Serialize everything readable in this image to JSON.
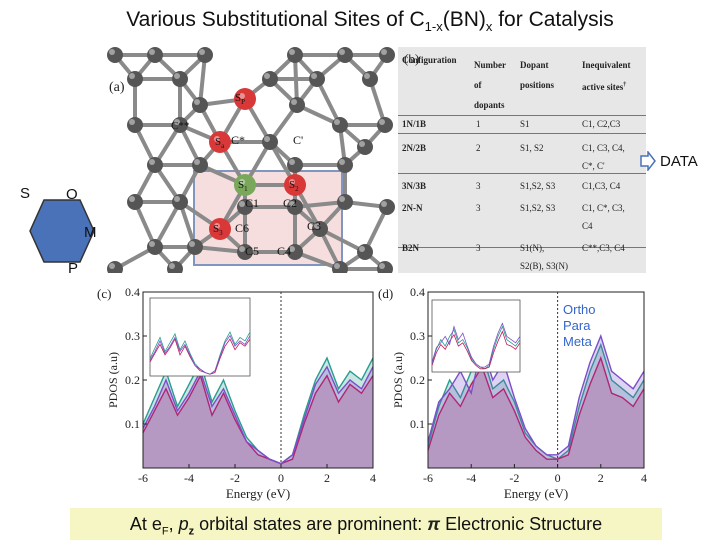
{
  "title": {
    "main": "Various Substitutional Sites of C",
    "sub1": "1-x",
    "mid": "(BN)",
    "sub2": "x",
    "end": " for Catalysis"
  },
  "panels": {
    "a": "(a)",
    "b": "(b)",
    "c": "(c)",
    "d": "(d)"
  },
  "structure_labels": {
    "sp": "S",
    "sp_sub": "P",
    "sa": "S",
    "sa_sub": "a",
    "c_star_star": "C**",
    "c_star": "C*",
    "c_prime": "C'",
    "s1": "S",
    "s1_sub": "1",
    "s2": "S",
    "s2_sub": "2",
    "s3": "S",
    "s3_sub": "3",
    "c1": "C1",
    "c2": "C2",
    "c3": "C3",
    "c4": "C4",
    "c5": "C5",
    "c6": "C6"
  },
  "table": {
    "headers": {
      "col1": "Configuration",
      "col2": [
        "Number",
        "of",
        "dopants"
      ],
      "col3": [
        "Dopant",
        "positions"
      ],
      "col4": [
        "Inequivalent",
        "active sites",
        "†"
      ]
    },
    "rows": [
      {
        "config": "1N/1B",
        "num": "1",
        "pos": "S1",
        "sites": [
          "C1, C2,C3"
        ]
      },
      {
        "config": "2N/2B",
        "num": "2",
        "pos": "S1, S2",
        "sites": [
          "C1,  C3,  C4,",
          "C*, C'"
        ]
      },
      {
        "config": "3N/3B",
        "num": "3",
        "pos": "S1,S2, S3",
        "sites": [
          "C1,C3, C4"
        ]
      },
      {
        "config": "2N-N",
        "num": "3",
        "pos": "S1,S2, S3",
        "sites": [
          "C1,   C*,   C3,",
          "C4"
        ]
      },
      {
        "config": "B2N",
        "num": "3",
        "pos": "S1(N),",
        "pos2": "S2(B), S3(N)",
        "sites": [
          "C**,C3, C4"
        ]
      }
    ]
  },
  "data_link": "DATA",
  "hexagon_labels": {
    "s": "S",
    "o": "O",
    "m": "M",
    "p": "P"
  },
  "legend": [
    "Ortho",
    "Para",
    "Meta"
  ],
  "colors": {
    "ortho": "#2a9d8f",
    "para": "#c2185b",
    "meta": "#7b4fc9",
    "legend_text": "#3366cc",
    "hexagon": "#4a72b8",
    "caption_bg": "#f6f6c4",
    "dopant_red": "#d93838",
    "dopant_green": "#79a85a"
  },
  "chart_data": [
    {
      "type": "area",
      "panel": "(c)",
      "xlabel": "Energy (eV)",
      "ylabel": "PDOS (a.u)",
      "xlim": [
        -6,
        4
      ],
      "ylim": [
        0,
        0.4
      ],
      "x_ticks": [
        "-6",
        "-4",
        "-2",
        "0",
        "2",
        "4"
      ],
      "y_ticks": [
        "0.1",
        "0.2",
        "0.3",
        "0.4"
      ],
      "series": [
        {
          "x": [
            -6,
            -5.5,
            -5,
            -4.5,
            -4,
            -3.5,
            -3,
            -2.5,
            -2,
            -1.5,
            -1,
            -0.5,
            0,
            0.5,
            1,
            1.5,
            2,
            2.5,
            3,
            3.5,
            4
          ],
          "y": [
            0.1,
            0.16,
            0.22,
            0.14,
            0.19,
            0.24,
            0.15,
            0.2,
            0.13,
            0.07,
            0.04,
            0.02,
            0.01,
            0.03,
            0.12,
            0.2,
            0.25,
            0.18,
            0.22,
            0.2,
            0.25
          ]
        },
        {
          "x": [
            -6,
            -5.5,
            -5,
            -4.5,
            -4,
            -3.5,
            -3,
            -2.5,
            -2,
            -1.5,
            -1,
            -0.5,
            0,
            0.5,
            1,
            1.5,
            2,
            2.5,
            3,
            3.5,
            4
          ],
          "y": [
            0.08,
            0.13,
            0.18,
            0.12,
            0.16,
            0.21,
            0.12,
            0.17,
            0.11,
            0.06,
            0.03,
            0.02,
            0.01,
            0.02,
            0.1,
            0.17,
            0.21,
            0.15,
            0.19,
            0.17,
            0.21
          ]
        },
        {
          "x": [
            -6,
            -5.5,
            -5,
            -4.5,
            -4,
            -3.5,
            -3,
            -2.5,
            -2,
            -1.5,
            -1,
            -0.5,
            0,
            0.5,
            1,
            1.5,
            2,
            2.5,
            3,
            3.5,
            4
          ],
          "y": [
            0.09,
            0.14,
            0.2,
            0.13,
            0.17,
            0.22,
            0.14,
            0.18,
            0.12,
            0.06,
            0.04,
            0.02,
            0.01,
            0.03,
            0.11,
            0.19,
            0.23,
            0.17,
            0.2,
            0.18,
            0.23
          ]
        }
      ]
    },
    {
      "type": "area",
      "panel": "(d)",
      "xlabel": "Energy (eV)",
      "ylabel": "PDOS (a.u)",
      "xlim": [
        -6,
        4
      ],
      "ylim": [
        0,
        0.4
      ],
      "x_ticks": [
        "-6",
        "-4",
        "-2",
        "0",
        "2",
        "4"
      ],
      "y_ticks": [
        "0.1",
        "0.2",
        "0.3",
        "0.4"
      ],
      "series": [
        {
          "x": [
            -6,
            -5.5,
            -5,
            -4.5,
            -4,
            -3.5,
            -3,
            -2.5,
            -2,
            -1.5,
            -1,
            -0.5,
            0,
            0.5,
            1,
            1.5,
            2,
            2.5,
            3,
            3.5,
            4
          ],
          "y": [
            0.05,
            0.14,
            0.2,
            0.16,
            0.22,
            0.26,
            0.18,
            0.2,
            0.15,
            0.08,
            0.05,
            0.03,
            0.02,
            0.04,
            0.14,
            0.22,
            0.28,
            0.2,
            0.18,
            0.16,
            0.2
          ]
        },
        {
          "x": [
            -6,
            -5.5,
            -5,
            -4.5,
            -4,
            -3.5,
            -3,
            -2.5,
            -2,
            -1.5,
            -1,
            -0.5,
            0,
            0.5,
            1,
            1.5,
            2,
            2.5,
            3,
            3.5,
            4
          ],
          "y": [
            0.04,
            0.12,
            0.17,
            0.14,
            0.19,
            0.23,
            0.16,
            0.18,
            0.13,
            0.07,
            0.04,
            0.02,
            0.02,
            0.03,
            0.12,
            0.19,
            0.25,
            0.17,
            0.16,
            0.14,
            0.18
          ]
        },
        {
          "x": [
            -6,
            -5.5,
            -5,
            -4.5,
            -4,
            -3.5,
            -3,
            -2.5,
            -2,
            -1.5,
            -1,
            -0.5,
            0,
            0.5,
            1,
            1.5,
            2,
            2.5,
            3,
            3.5,
            4
          ],
          "y": [
            0.06,
            0.15,
            0.18,
            0.22,
            0.17,
            0.28,
            0.2,
            0.24,
            0.16,
            0.09,
            0.05,
            0.03,
            0.03,
            0.05,
            0.16,
            0.24,
            0.3,
            0.22,
            0.2,
            0.18,
            0.22
          ]
        }
      ]
    }
  ],
  "caption": {
    "prefix": "At e",
    "sub_f": "F",
    "mid": ", ",
    "p": "p",
    "p_sub": "z",
    "rest": " orbital states are prominent: ",
    "pi": "π",
    "end": " Electronic Structure"
  }
}
